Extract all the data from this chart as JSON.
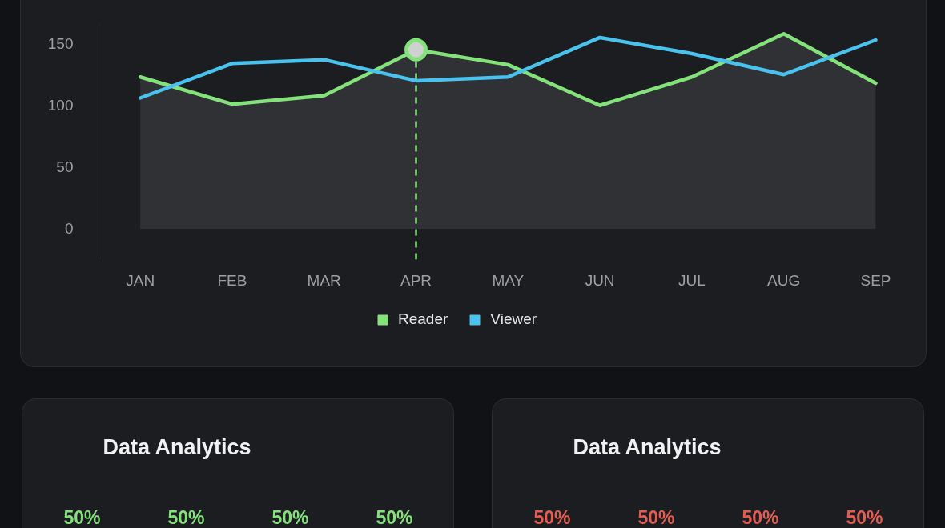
{
  "chart_data": [
    {
      "type": "line",
      "categories": [
        "JAN",
        "FEB",
        "MAR",
        "APR",
        "MAY",
        "JUN",
        "JUL",
        "AUG",
        "SEP"
      ],
      "ylim": [
        -25,
        165
      ],
      "yticks": [
        0,
        50,
        100,
        150
      ],
      "grid": false,
      "legend": "bottom",
      "series": [
        {
          "name": "Reader",
          "type": "area",
          "color": "#84e27b",
          "values": [
            123,
            101,
            108,
            145,
            133,
            100,
            123,
            158,
            118
          ]
        },
        {
          "name": "Viewer",
          "type": "line",
          "color": "#4ac2ee",
          "values": [
            106,
            134,
            137,
            120,
            123,
            155,
            142,
            125,
            153
          ]
        },
        {
          "type": "scatter",
          "color": "#84e27b",
          "marker": "circle",
          "x": [
            "APR"
          ],
          "values": [
            145
          ]
        }
      ],
      "ref_lines": [
        {
          "axis": "x",
          "value": "APR",
          "color": "#84e27b",
          "line_style": "dashed"
        }
      ]
    },
    {
      "type": "other",
      "title": "Data Analytics",
      "annotations": [
        "50%",
        "50%",
        "50%",
        "50%"
      ],
      "colors": [
        "#84e27b",
        "#84e27b",
        "#84e27b",
        "#84e27b"
      ]
    },
    {
      "type": "other",
      "title": "Data Analytics",
      "annotations": [
        "50%",
        "50%",
        "50%",
        "50%"
      ],
      "colors": [
        "#e35d52",
        "#e35d52",
        "#e35d52",
        "#e35d52"
      ]
    }
  ]
}
